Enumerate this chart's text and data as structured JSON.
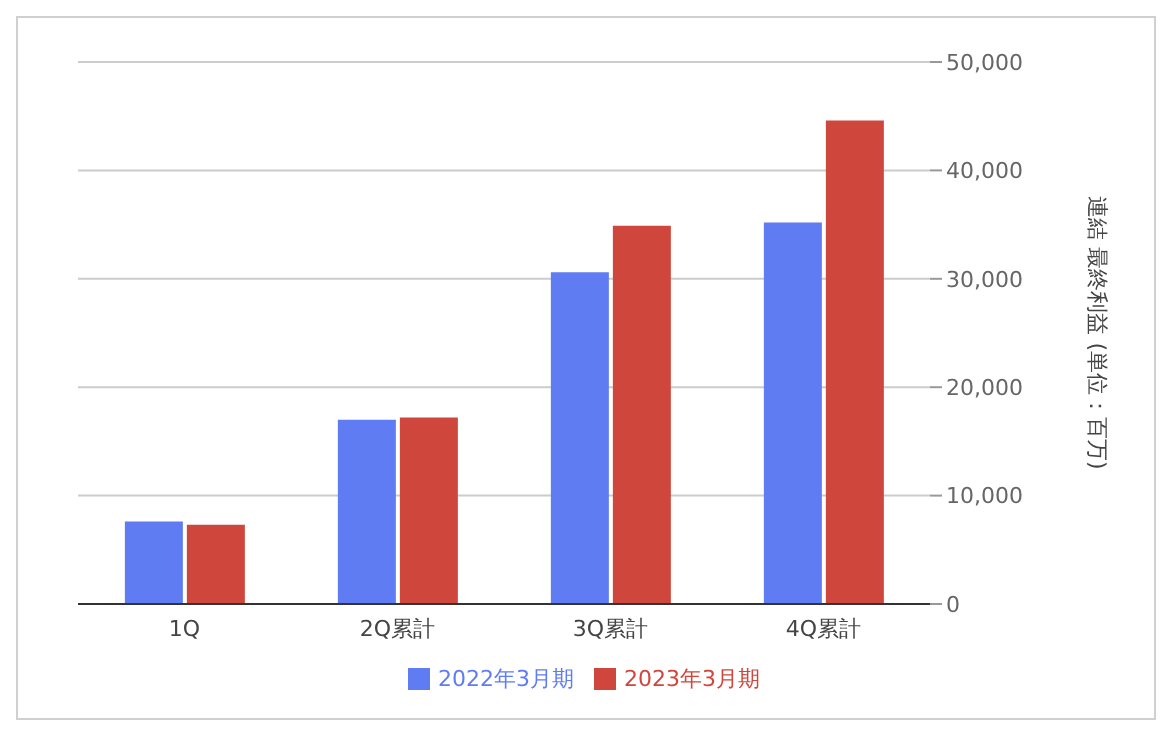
{
  "chart_data": {
    "type": "bar",
    "ylabel": "連結 最終利益 (単位：百万)",
    "categories": [
      "1Q",
      "2Q累計",
      "3Q累計",
      "4Q累計"
    ],
    "series": [
      {
        "name": "2022年3月期",
        "color": "#5f7cf2",
        "values": [
          7600,
          17000,
          30600,
          35200
        ]
      },
      {
        "name": "2023年3月期",
        "color": "#cf473c",
        "values": [
          7300,
          17200,
          34900,
          44600
        ]
      }
    ],
    "ylim": [
      0,
      50000
    ],
    "yticks": [
      {
        "value": 0,
        "label": "0"
      },
      {
        "value": 10000,
        "label": "10,000"
      },
      {
        "value": 20000,
        "label": "20,000"
      },
      {
        "value": 30000,
        "label": "30,000"
      },
      {
        "value": 40000,
        "label": "40,000"
      },
      {
        "value": 50000,
        "label": "50,000"
      }
    ],
    "grid": "y",
    "legend": "bottom"
  }
}
